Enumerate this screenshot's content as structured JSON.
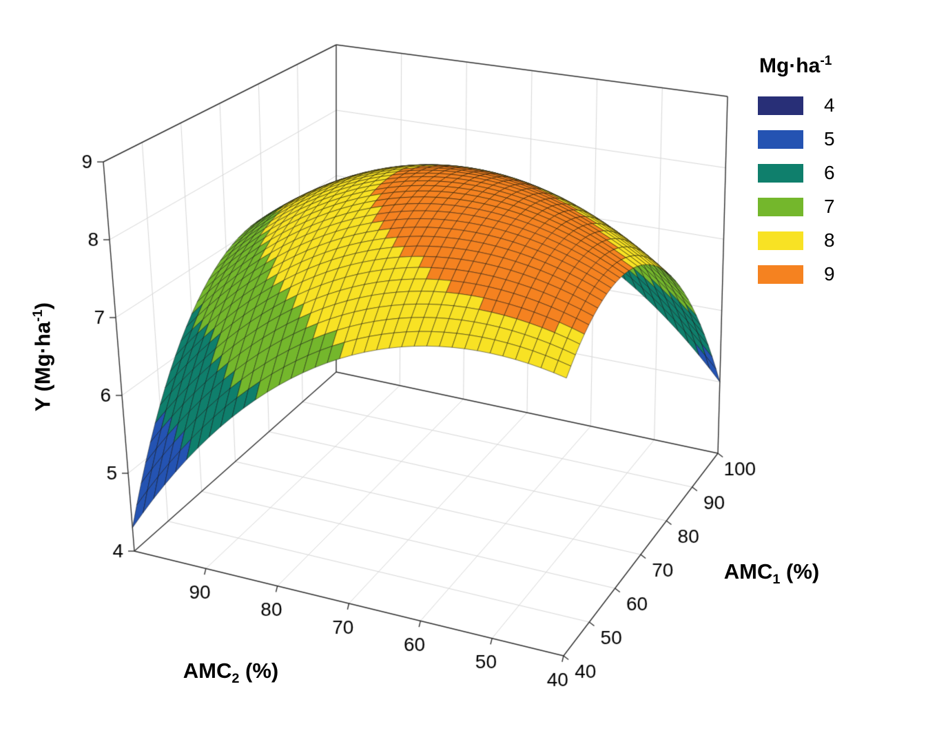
{
  "figure": {
    "background": "#ffffff"
  },
  "chart_data": {
    "type": "surface3d",
    "z_axis": {
      "label_pre": "Y (Mg·ha",
      "label_sup": "-1",
      "label_post": ")",
      "range": [
        4,
        9
      ],
      "ticks": [
        4,
        5,
        6,
        7,
        8,
        9
      ]
    },
    "amc1_axis": {
      "label_pre": "AMC",
      "label_sub": "1",
      "label_post": " (%)",
      "range": [
        40,
        100
      ],
      "ticks": [
        40,
        50,
        60,
        70,
        80,
        90,
        100
      ]
    },
    "amc2_axis": {
      "label_pre": "AMC",
      "label_sub": "2",
      "label_post": " (%)",
      "range": [
        40,
        100
      ],
      "ticks": [
        40,
        50,
        60,
        70,
        80,
        90
      ]
    },
    "legend": {
      "title_pre": "Mg·ha",
      "title_sup": "-1",
      "bands": [
        {
          "label": "4",
          "value": 4,
          "color": "#282f77"
        },
        {
          "label": "5",
          "value": 5,
          "color": "#2453b2"
        },
        {
          "label": "6",
          "value": 6,
          "color": "#0f7f6c"
        },
        {
          "label": "7",
          "value": 7,
          "color": "#74b72c"
        },
        {
          "label": "8",
          "value": 8,
          "color": "#f8e224"
        },
        {
          "label": "9",
          "value": 9,
          "color": "#f58220"
        }
      ]
    },
    "surface_model": {
      "peak_y": 8.9,
      "peak_amc1": 62,
      "peak_amc2": 57,
      "a": 0.001799,
      "c": 0.0012781,
      "d": -0.0014441
    },
    "grid_samples": {
      "amc1_levels": [
        40,
        50,
        60,
        70,
        80,
        90,
        100
      ],
      "amc2_levels": [
        40,
        50,
        60,
        70,
        80,
        90,
        100
      ],
      "y_values": [
        [
          8.2,
          8.19,
          7.92,
          7.4,
          6.62,
          5.59,
          4.3
        ],
        [
          8.57,
          8.7,
          8.58,
          8.2,
          7.57,
          6.68,
          5.53
        ],
        [
          8.57,
          8.85,
          8.87,
          8.64,
          8.15,
          7.41,
          6.41
        ],
        [
          8.22,
          8.64,
          8.81,
          8.72,
          8.37,
          7.77,
          6.92
        ],
        [
          7.51,
          8.07,
          8.38,
          8.44,
          8.24,
          7.78,
          7.07
        ],
        [
          6.43,
          7.14,
          7.6,
          7.8,
          7.74,
          7.43,
          6.87
        ],
        [
          5.0,
          5.86,
          6.46,
          6.8,
          6.89,
          6.72,
          6.3
        ]
      ]
    },
    "style": {
      "grid_color": "#d7d7d7",
      "box_edge_color": "#2b2b2b",
      "mesh_line_color": "rgba(10,10,10,0.85)"
    }
  }
}
